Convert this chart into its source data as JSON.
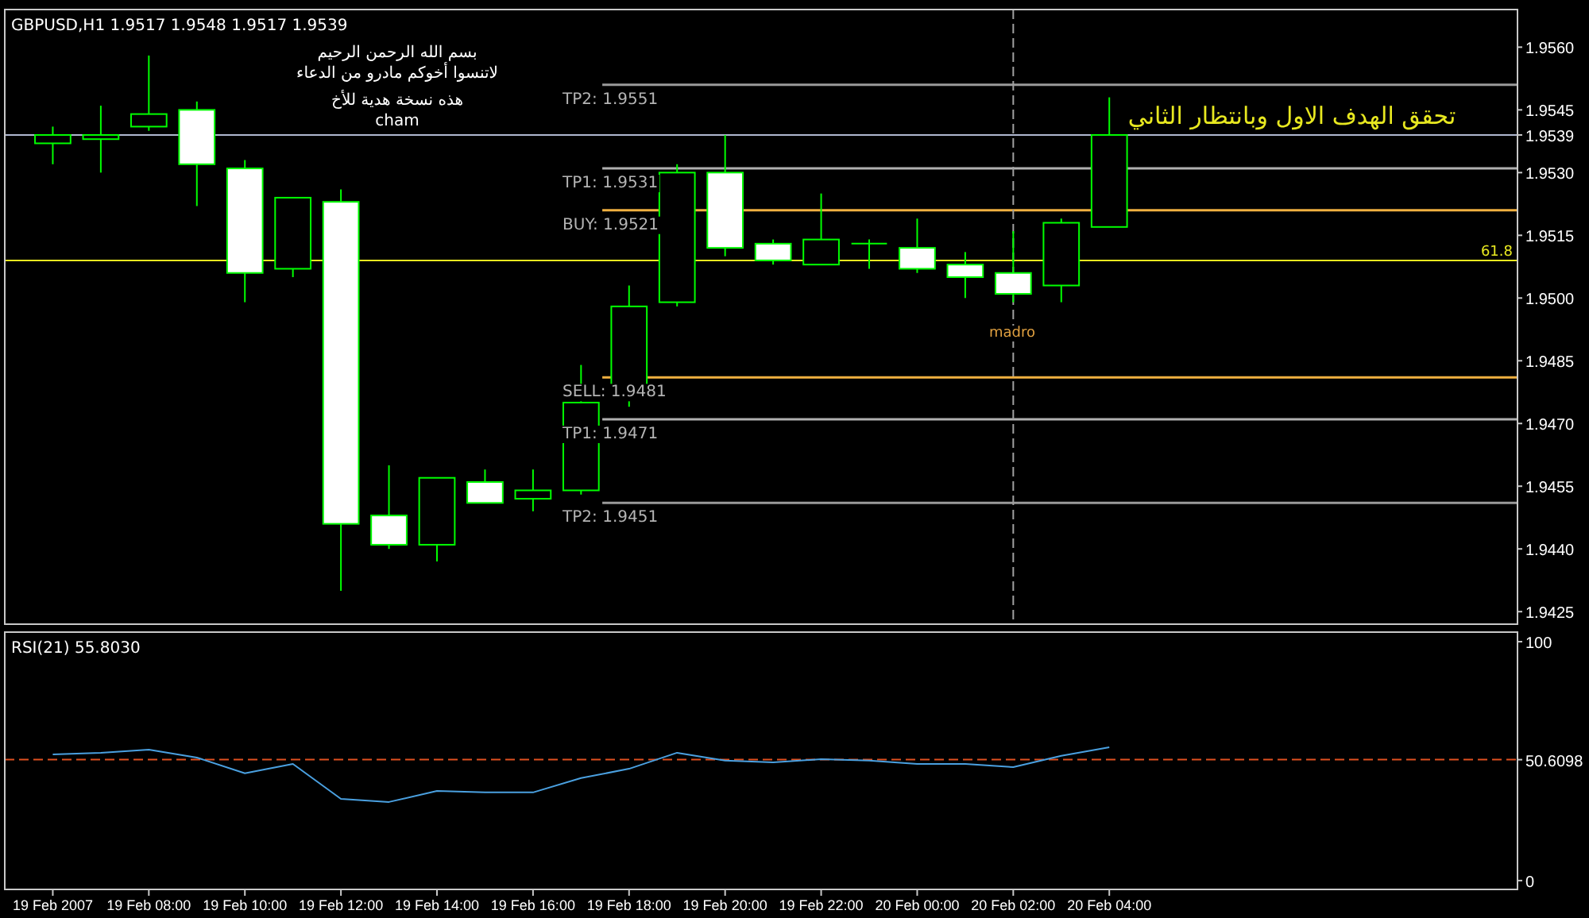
{
  "chart_data": [
    {
      "type": "candlestick",
      "title": "GBPUSD,H1 1.9517 1.9548 1.9517 1.9539",
      "x": [
        "2007-02-19T06:00",
        "2007-02-19T07:00",
        "2007-02-19T08:00",
        "2007-02-19T09:00",
        "2007-02-19T10:00",
        "2007-02-19T11:00",
        "2007-02-19T12:00",
        "2007-02-19T13:00",
        "2007-02-19T14:00",
        "2007-02-19T15:00",
        "2007-02-19T16:00",
        "2007-02-19T17:00",
        "2007-02-19T18:00",
        "2007-02-19T19:00",
        "2007-02-19T20:00",
        "2007-02-19T21:00",
        "2007-02-19T22:00",
        "2007-02-19T23:00",
        "2007-02-20T00:00",
        "2007-02-20T01:00",
        "2007-02-20T02:00",
        "2007-02-20T03:00",
        "2007-02-20T04:00"
      ],
      "ohlc": [
        [
          1.9537,
          1.9541,
          1.9532,
          1.9539
        ],
        [
          1.9538,
          1.9546,
          1.953,
          1.9539
        ],
        [
          1.9541,
          1.9558,
          1.954,
          1.9544
        ],
        [
          1.9545,
          1.9547,
          1.9522,
          1.9532
        ],
        [
          1.9531,
          1.9533,
          1.9499,
          1.9506
        ],
        [
          1.9507,
          1.9524,
          1.9505,
          1.9524
        ],
        [
          1.9523,
          1.9526,
          1.943,
          1.9446
        ],
        [
          1.9448,
          1.946,
          1.944,
          1.9441
        ],
        [
          1.9441,
          1.9457,
          1.9437,
          1.9457
        ],
        [
          1.9456,
          1.9459,
          1.9451,
          1.9451
        ],
        [
          1.9452,
          1.9459,
          1.9449,
          1.9454
        ],
        [
          1.9454,
          1.9484,
          1.9453,
          1.9475
        ],
        [
          1.9476,
          1.9503,
          1.9474,
          1.9498
        ],
        [
          1.9499,
          1.9532,
          1.9498,
          1.953
        ],
        [
          1.953,
          1.9539,
          1.951,
          1.9512
        ],
        [
          1.9513,
          1.9514,
          1.9508,
          1.9509
        ],
        [
          1.9508,
          1.9525,
          1.9508,
          1.9514
        ],
        [
          1.9513,
          1.9514,
          1.9507,
          1.9513
        ],
        [
          1.9512,
          1.9519,
          1.9506,
          1.9507
        ],
        [
          1.9508,
          1.9511,
          1.95,
          1.9505
        ],
        [
          1.9506,
          1.9516,
          1.9499,
          1.9501
        ],
        [
          1.9503,
          1.9519,
          1.9499,
          1.9518
        ],
        [
          1.9517,
          1.9548,
          1.9517,
          1.9539
        ]
      ],
      "color": "#00ff00",
      "xlim": [
        "2007-02-19T05:00",
        "2007-02-20T12:30"
      ],
      "ylim": [
        1.9422,
        1.9569
      ],
      "yticks": [
        {
          "value": 1.956,
          "label": "1.9560"
        },
        {
          "value": 1.9545,
          "label": "1.9545"
        },
        {
          "value": 1.9539,
          "label": "1.9539"
        },
        {
          "value": 1.953,
          "label": "1.9530"
        },
        {
          "value": 1.9515,
          "label": "1.9515"
        },
        {
          "value": 1.95,
          "label": "1.9500"
        },
        {
          "value": 1.9485,
          "label": "1.9485"
        },
        {
          "value": 1.947,
          "label": "1.9470"
        },
        {
          "value": 1.9455,
          "label": "1.9455"
        },
        {
          "value": 1.944,
          "label": "1.9440"
        },
        {
          "value": 1.9425,
          "label": "1.9425"
        }
      ],
      "tick_labels": "y",
      "ref_lines": [
        {
          "axis": "y",
          "value": 1.9551,
          "label": "TP2: 1.9551",
          "color": "#9a9a9a"
        },
        {
          "axis": "y",
          "value": 1.9531,
          "label": "TP1: 1.9531",
          "color": "#b0b0b0"
        },
        {
          "axis": "y",
          "value": 1.9521,
          "label": "BUY: 1.9521",
          "color": "#f0b040"
        },
        {
          "axis": "y",
          "value": 1.9481,
          "label": "SELL: 1.9481",
          "color": "#f0b040"
        },
        {
          "axis": "y",
          "value": 1.9471,
          "label": "TP1: 1.9471",
          "color": "#b0b0b0"
        },
        {
          "axis": "y",
          "value": 1.9451,
          "label": "TP2: 1.9451",
          "color": "#9a9a9a"
        },
        {
          "axis": "y",
          "value": 1.9509,
          "color": "#e8e820"
        },
        {
          "axis": "y",
          "value": 1.9539,
          "color": "#b0b8d0"
        },
        {
          "axis": "x",
          "value": "2007-02-20T02:00",
          "color": "#a0a0a0",
          "line_style": "dashed"
        }
      ],
      "annotations": [
        "بسم الله الرحمن الرحيم",
        "لاتنسوا أخوكم مادرو من الدعاء",
        "هذه نسخة هدية للأخ",
        "cham",
        "madro",
        "تحقق الهدف الاول وبانتظار الثاني",
        {
          "text": "61.8",
          "x": "2007-02-20T12:30",
          "y": 1.9509
        }
      ]
    },
    {
      "type": "line",
      "title": "RSI(21) 55.8030",
      "x": [
        "2007-02-19T06:00",
        "2007-02-19T07:00",
        "2007-02-19T08:00",
        "2007-02-19T09:00",
        "2007-02-19T10:00",
        "2007-02-19T11:00",
        "2007-02-19T12:00",
        "2007-02-19T13:00",
        "2007-02-19T14:00",
        "2007-02-19T15:00",
        "2007-02-19T16:00",
        "2007-02-19T17:00",
        "2007-02-19T18:00",
        "2007-02-19T19:00",
        "2007-02-19T20:00",
        "2007-02-19T21:00",
        "2007-02-19T22:00",
        "2007-02-19T23:00",
        "2007-02-20T00:00",
        "2007-02-20T01:00",
        "2007-02-20T02:00",
        "2007-02-20T03:00",
        "2007-02-20T04:00"
      ],
      "values": [
        52.8,
        53.5,
        54.8,
        51.5,
        44.9,
        48.8,
        34.2,
        32.9,
        37.5,
        36.9,
        36.9,
        42.9,
        46.8,
        53.5,
        50.2,
        49.5,
        50.8,
        50.2,
        48.8,
        48.8,
        47.5,
        52.2,
        55.8
      ],
      "color": "#4aa0e0",
      "xlim": [
        "2007-02-19T05:00",
        "2007-02-20T12:30"
      ],
      "ylim": [
        -3.7,
        104
      ],
      "yticks": [
        0,
        100,
        {
          "value": 50.6098,
          "label": "50.6098"
        }
      ],
      "xticks": [
        {
          "value": "2007-02-19T06:00",
          "label": "19 Feb 2007"
        },
        {
          "value": "2007-02-19T08:00",
          "label": "19 Feb 08:00"
        },
        {
          "value": "2007-02-19T10:00",
          "label": "19 Feb 10:00"
        },
        {
          "value": "2007-02-19T12:00",
          "label": "19 Feb 12:00"
        },
        {
          "value": "2007-02-19T14:00",
          "label": "19 Feb 14:00"
        },
        {
          "value": "2007-02-19T16:00",
          "label": "19 Feb 16:00"
        },
        {
          "value": "2007-02-19T18:00",
          "label": "19 Feb 18:00"
        },
        {
          "value": "2007-02-19T20:00",
          "label": "19 Feb 20:00"
        },
        {
          "value": "2007-02-19T22:00",
          "label": "19 Feb 22:00"
        },
        {
          "value": "2007-02-20T00:00",
          "label": "20 Feb 00:00"
        },
        {
          "value": "2007-02-20T02:00",
          "label": "20 Feb 02:00"
        },
        {
          "value": "2007-02-20T04:00",
          "label": "20 Feb 04:00"
        }
      ],
      "ref_lines": [
        {
          "axis": "y",
          "value": 50.6098,
          "color": "#e05020",
          "line_style": "dashed"
        }
      ]
    }
  ]
}
